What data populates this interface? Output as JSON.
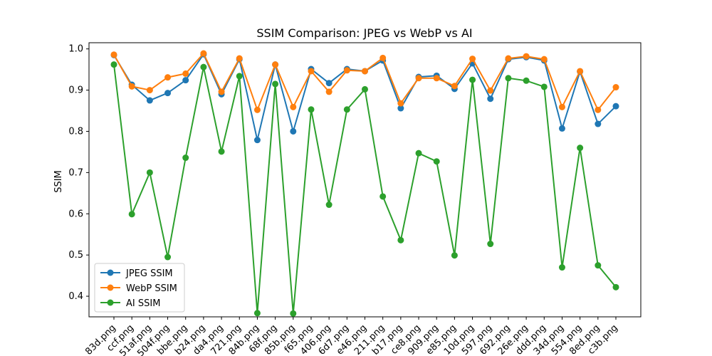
{
  "chart_data": {
    "type": "line",
    "title": "SSIM Comparison: JPEG vs WebP vs AI",
    "xlabel": "",
    "ylabel": "SSIM",
    "ylim": [
      0.35,
      1.015
    ],
    "yticks": [
      0.4,
      0.5,
      0.6,
      0.7,
      0.8,
      0.9,
      1.0
    ],
    "grid": false,
    "legend_position": "lower-left",
    "categories": [
      "83d.png",
      "ccf.png",
      "51af.png",
      "504f.png",
      "bbe.png",
      "b24.png",
      "da4.png",
      "721.png",
      "84b.png",
      "68f.png",
      "85b.png",
      "f65.png",
      "406.png",
      "6d7.png",
      "e46.png",
      "211.png",
      "b17.png",
      "ce8.png",
      "909.png",
      "e85.png",
      "10d.png",
      "597.png",
      "692.png",
      "26e.png",
      "ddd.png",
      "34d.png",
      "554.png",
      "8ed.png",
      "c3b.png"
    ],
    "series": [
      {
        "name": "JPEG SSIM",
        "color": "#1f77b4",
        "values": [
          0.985,
          0.913,
          0.875,
          0.893,
          0.924,
          0.987,
          0.89,
          0.975,
          0.779,
          0.962,
          0.8,
          0.951,
          0.917,
          0.951,
          0.946,
          0.972,
          0.856,
          0.932,
          0.935,
          0.903,
          0.965,
          0.879,
          0.975,
          0.98,
          0.972,
          0.807,
          0.945,
          0.818,
          0.861
        ]
      },
      {
        "name": "WebP SSIM",
        "color": "#ff7f0e",
        "values": [
          0.986,
          0.909,
          0.9,
          0.931,
          0.94,
          0.989,
          0.896,
          0.977,
          0.852,
          0.962,
          0.859,
          0.946,
          0.896,
          0.948,
          0.946,
          0.978,
          0.868,
          0.929,
          0.929,
          0.91,
          0.976,
          0.899,
          0.977,
          0.982,
          0.975,
          0.859,
          0.946,
          0.852,
          0.907
        ]
      },
      {
        "name": "AI SSIM",
        "color": "#2ca02c",
        "values": [
          0.962,
          0.599,
          0.7,
          0.495,
          0.736,
          0.956,
          0.751,
          0.934,
          0.359,
          0.915,
          0.358,
          0.853,
          0.622,
          0.853,
          0.902,
          0.642,
          0.536,
          0.747,
          0.727,
          0.499,
          0.925,
          0.527,
          0.929,
          0.923,
          0.908,
          0.47,
          0.76,
          0.475,
          0.422
        ]
      }
    ]
  }
}
